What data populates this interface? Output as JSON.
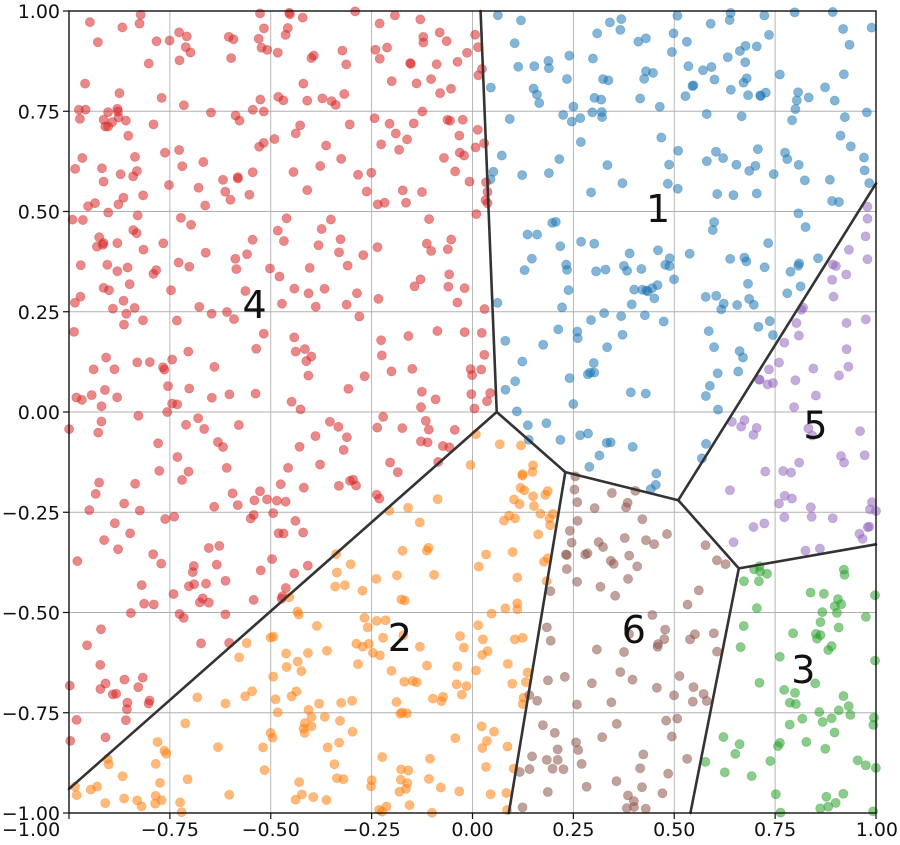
{
  "chart_data": {
    "type": "scatter",
    "title": "",
    "xlabel": "",
    "ylabel": "",
    "xlim": [
      -1.0,
      1.0
    ],
    "ylim": [
      -1.0,
      1.0
    ],
    "grid": true,
    "xticks": [
      -1.0,
      -0.75,
      -0.5,
      -0.25,
      0.0,
      0.25,
      0.5,
      0.75,
      1.0
    ],
    "yticks": [
      -1.0,
      -0.75,
      -0.5,
      -0.25,
      0.0,
      0.25,
      0.5,
      0.75,
      1.0
    ],
    "xtick_labels": [
      "−1.00",
      "−0.75",
      "−0.50",
      "−0.25",
      "0.00",
      "0.25",
      "0.50",
      "0.75",
      "1.00"
    ],
    "ytick_labels": [
      "−1.00",
      "−0.75",
      "−0.50",
      "−0.25",
      "0.00",
      "0.25",
      "0.50",
      "0.75",
      "1.00"
    ],
    "line_color": "#333333",
    "voronoi_vertices": [
      {
        "id": "A",
        "x": 0.06,
        "y": 0.0
      },
      {
        "id": "B",
        "x": 0.23,
        "y": -0.15
      },
      {
        "id": "C",
        "x": 0.51,
        "y": -0.22
      },
      {
        "id": "D",
        "x": 0.66,
        "y": -0.39
      }
    ],
    "voronoi_edges": [
      {
        "from": [
          0.06,
          0.0
        ],
        "to": [
          0.02,
          1.0
        ]
      },
      {
        "from": [
          0.06,
          0.0
        ],
        "to": [
          -1.0,
          -0.94
        ]
      },
      {
        "from": [
          0.06,
          0.0
        ],
        "to": [
          0.23,
          -0.15
        ]
      },
      {
        "from": [
          0.23,
          -0.15
        ],
        "to": [
          0.09,
          -1.0
        ]
      },
      {
        "from": [
          0.23,
          -0.15
        ],
        "to": [
          0.51,
          -0.22
        ]
      },
      {
        "from": [
          0.51,
          -0.22
        ],
        "to": [
          1.0,
          0.57
        ]
      },
      {
        "from": [
          0.51,
          -0.22
        ],
        "to": [
          0.66,
          -0.39
        ]
      },
      {
        "from": [
          0.66,
          -0.39
        ],
        "to": [
          1.0,
          -0.33
        ]
      },
      {
        "from": [
          0.66,
          -0.39
        ],
        "to": [
          0.54,
          -1.0
        ]
      }
    ],
    "regions": [
      {
        "label": "1",
        "color": "#1f77b4",
        "label_x": 0.46,
        "label_y": 0.5,
        "polygon": [
          [
            0.02,
            1.0
          ],
          [
            1.0,
            1.0
          ],
          [
            1.0,
            0.57
          ],
          [
            0.51,
            -0.22
          ],
          [
            0.23,
            -0.15
          ],
          [
            0.06,
            0.0
          ]
        ],
        "n_points": 230
      },
      {
        "label": "2",
        "color": "#ff7f0e",
        "label_x": -0.18,
        "label_y": -0.57,
        "polygon": [
          [
            0.06,
            0.0
          ],
          [
            0.23,
            -0.15
          ],
          [
            0.09,
            -1.0
          ],
          [
            -1.0,
            -1.0
          ],
          [
            -1.0,
            -0.94
          ]
        ],
        "n_points": 200
      },
      {
        "label": "3",
        "color": "#2ca02c",
        "label_x": 0.82,
        "label_y": -0.65,
        "polygon": [
          [
            0.66,
            -0.39
          ],
          [
            1.0,
            -0.33
          ],
          [
            1.0,
            -1.0
          ],
          [
            0.54,
            -1.0
          ]
        ],
        "n_points": 70
      },
      {
        "label": "4",
        "color": "#d62728",
        "label_x": -0.54,
        "label_y": 0.26,
        "polygon": [
          [
            -1.0,
            1.0
          ],
          [
            0.02,
            1.0
          ],
          [
            0.06,
            0.0
          ],
          [
            -1.0,
            -0.94
          ]
        ],
        "n_points": 420
      },
      {
        "label": "5",
        "color": "#9467bd",
        "label_x": 0.85,
        "label_y": -0.04,
        "polygon": [
          [
            0.51,
            -0.22
          ],
          [
            1.0,
            0.57
          ],
          [
            1.0,
            -0.33
          ],
          [
            0.66,
            -0.39
          ]
        ],
        "n_points": 65
      },
      {
        "label": "6",
        "color": "#8c564b",
        "label_x": 0.4,
        "label_y": -0.55,
        "polygon": [
          [
            0.23,
            -0.15
          ],
          [
            0.51,
            -0.22
          ],
          [
            0.66,
            -0.39
          ],
          [
            0.54,
            -1.0
          ],
          [
            0.09,
            -1.0
          ]
        ],
        "n_points": 100
      }
    ]
  }
}
